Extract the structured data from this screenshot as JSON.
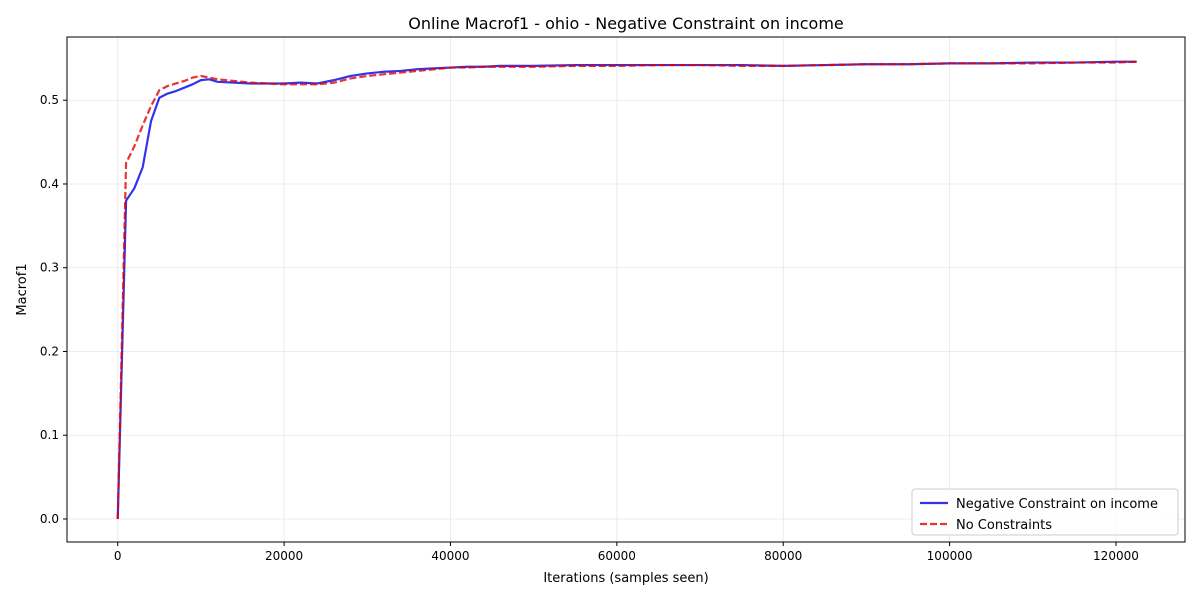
{
  "chart_data": {
    "type": "line",
    "title": "Online Macrof1 - ohio - Negative Constraint on income",
    "xlabel": "Iterations (samples seen)",
    "ylabel": "Macrof1",
    "xlim": [
      -6100,
      128300
    ],
    "ylim": [
      -0.0275,
      0.5755
    ],
    "xticks": [
      0,
      20000,
      40000,
      60000,
      80000,
      100000,
      120000
    ],
    "xtick_labels": [
      "0",
      "20000",
      "40000",
      "60000",
      "80000",
      "100000",
      "120000"
    ],
    "yticks": [
      0.0,
      0.1,
      0.2,
      0.3,
      0.4,
      0.5
    ],
    "ytick_labels": [
      "0.0",
      "0.1",
      "0.2",
      "0.3",
      "0.4",
      "0.5"
    ],
    "grid": true,
    "legend_position": "lower-right",
    "series": [
      {
        "name": "Negative Constraint on income",
        "color": "#0000e6",
        "style": "solid",
        "x": [
          0,
          1000,
          2000,
          3000,
          4000,
          5000,
          6000,
          7000,
          8000,
          9000,
          10000,
          11000,
          12000,
          14000,
          16000,
          18000,
          20000,
          22000,
          24000,
          26000,
          28000,
          30000,
          32000,
          34000,
          36000,
          38000,
          40000,
          42000,
          44000,
          46000,
          48000,
          50000,
          55000,
          60000,
          65000,
          70000,
          75000,
          80000,
          85000,
          90000,
          95000,
          100000,
          105000,
          110000,
          115000,
          120000,
          122500
        ],
        "y": [
          0.0,
          0.38,
          0.395,
          0.42,
          0.475,
          0.503,
          0.508,
          0.511,
          0.515,
          0.519,
          0.524,
          0.525,
          0.522,
          0.521,
          0.52,
          0.52,
          0.52,
          0.521,
          0.52,
          0.524,
          0.529,
          0.532,
          0.534,
          0.535,
          0.537,
          0.538,
          0.539,
          0.54,
          0.54,
          0.541,
          0.541,
          0.541,
          0.542,
          0.542,
          0.542,
          0.542,
          0.542,
          0.541,
          0.542,
          0.543,
          0.543,
          0.544,
          0.544,
          0.545,
          0.545,
          0.546,
          0.546
        ]
      },
      {
        "name": "No Constraints",
        "color": "#e60000",
        "style": "dashed",
        "x": [
          0,
          1000,
          2000,
          3000,
          4000,
          5000,
          6000,
          7000,
          8000,
          9000,
          10000,
          11000,
          12000,
          14000,
          16000,
          18000,
          20000,
          22000,
          24000,
          26000,
          28000,
          30000,
          32000,
          34000,
          36000,
          38000,
          40000,
          42000,
          44000,
          46000,
          48000,
          50000,
          55000,
          60000,
          65000,
          70000,
          75000,
          80000,
          85000,
          90000,
          95000,
          100000,
          105000,
          110000,
          115000,
          120000,
          122500
        ],
        "y": [
          0.0,
          0.425,
          0.445,
          0.47,
          0.493,
          0.512,
          0.517,
          0.52,
          0.523,
          0.527,
          0.529,
          0.527,
          0.525,
          0.523,
          0.521,
          0.52,
          0.519,
          0.519,
          0.519,
          0.521,
          0.526,
          0.529,
          0.531,
          0.533,
          0.535,
          0.537,
          0.539,
          0.539,
          0.54,
          0.54,
          0.54,
          0.54,
          0.541,
          0.541,
          0.542,
          0.542,
          0.541,
          0.541,
          0.542,
          0.543,
          0.543,
          0.544,
          0.544,
          0.544,
          0.545,
          0.545,
          0.546
        ]
      }
    ]
  }
}
